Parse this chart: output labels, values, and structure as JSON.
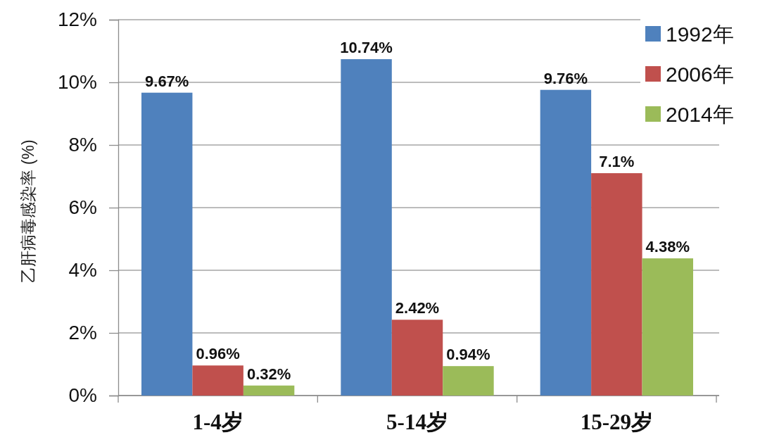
{
  "chart_data": {
    "type": "bar",
    "ylabel": "乙肝病毒感染率 (%)",
    "categories": [
      "1-4岁",
      "5-14岁",
      "15-29岁"
    ],
    "series": [
      {
        "name": "1992年",
        "color": "#4f81bd",
        "values": [
          9.67,
          10.74,
          9.76
        ],
        "value_labels": [
          "9.67%",
          "10.74%",
          "9.76%"
        ]
      },
      {
        "name": "2006年",
        "color": "#c0504d",
        "values": [
          0.96,
          2.42,
          7.1
        ],
        "value_labels": [
          "0.96%",
          "2.42%",
          "7.1%"
        ]
      },
      {
        "name": "2014年",
        "color": "#9bbb59",
        "values": [
          0.32,
          0.94,
          4.38
        ],
        "value_labels": [
          "0.32%",
          "0.94%",
          "4.38%"
        ]
      }
    ],
    "ylim": [
      0,
      12
    ],
    "yticks": [
      {
        "value": 0,
        "label": "0%"
      },
      {
        "value": 2,
        "label": "2%"
      },
      {
        "value": 4,
        "label": "4%"
      },
      {
        "value": 6,
        "label": "6%"
      },
      {
        "value": 8,
        "label": "8%"
      },
      {
        "value": 10,
        "label": "10%"
      },
      {
        "value": 12,
        "label": "12%"
      }
    ],
    "grid": "y",
    "legend": "top right"
  }
}
